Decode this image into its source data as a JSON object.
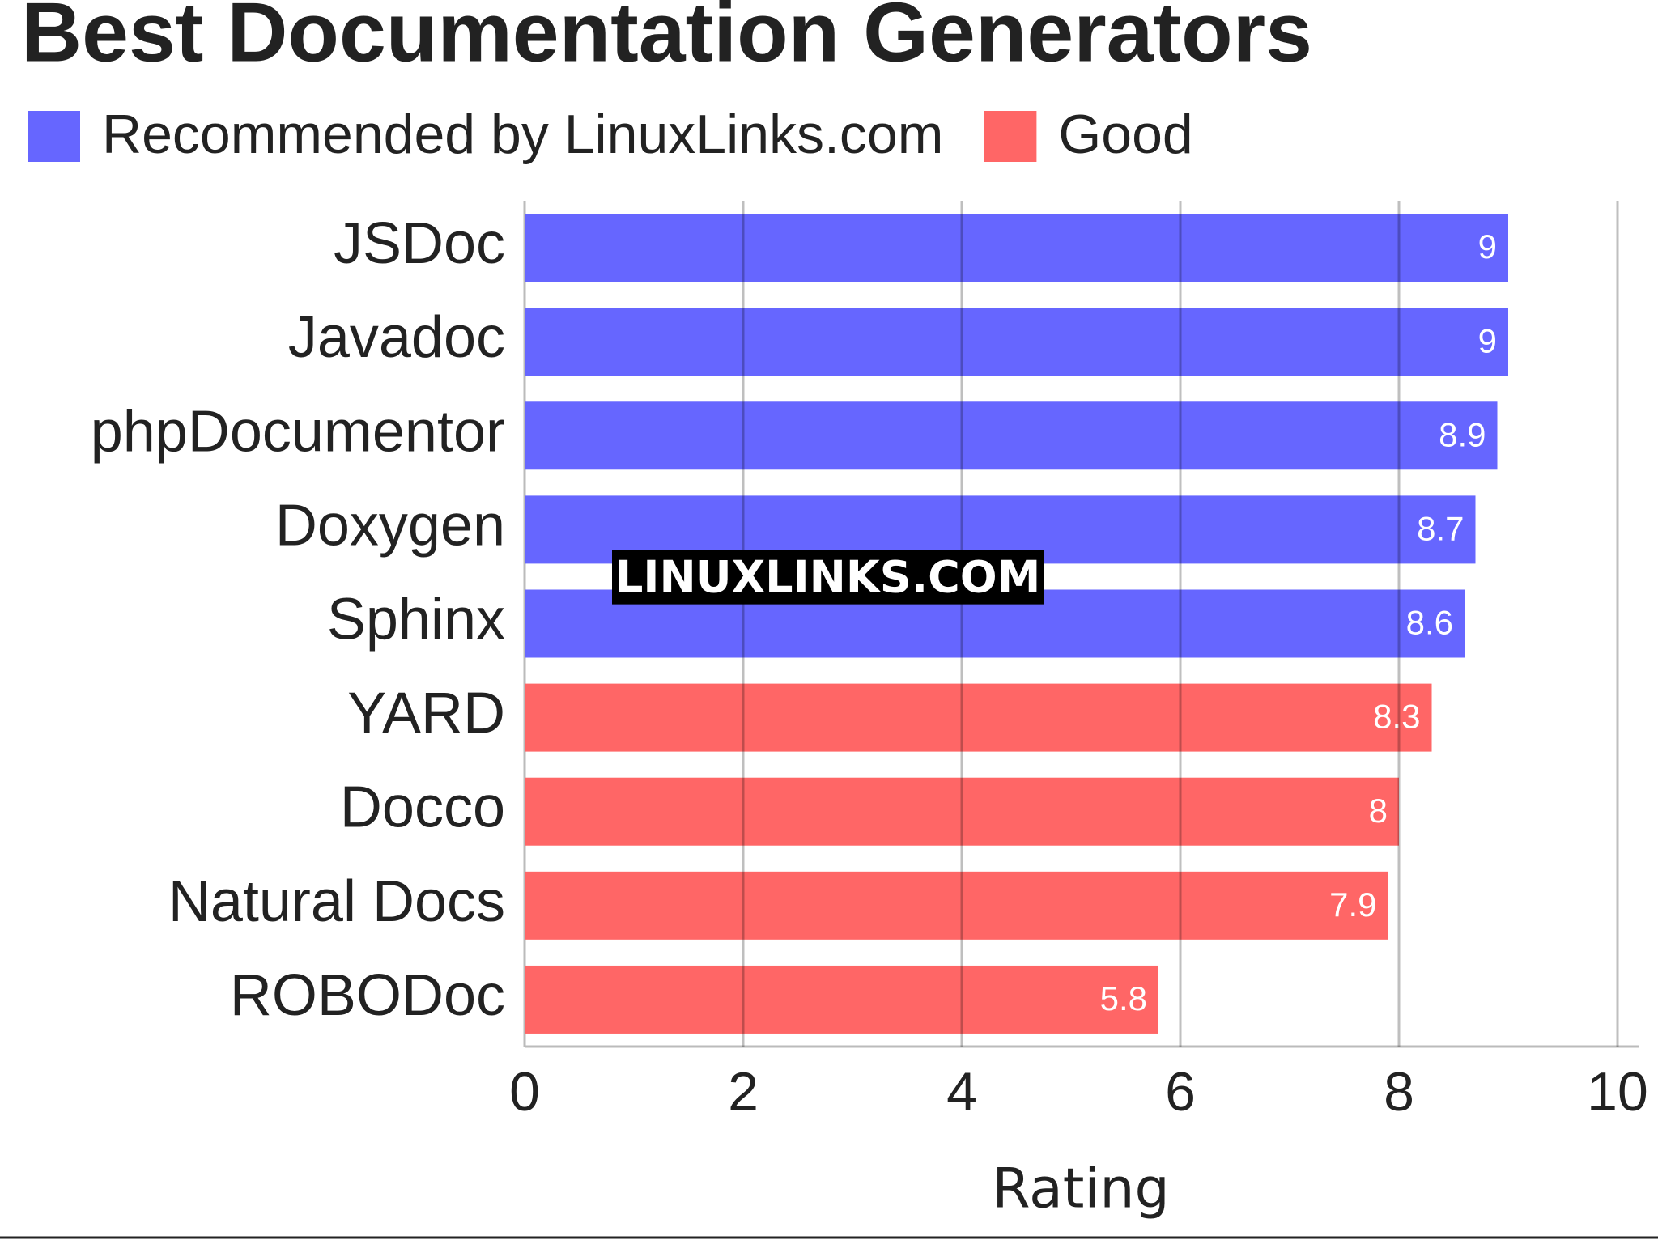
{
  "chart_data": {
    "type": "bar",
    "orientation": "horizontal",
    "title": "Best Documentation Generators",
    "watermark": "LINUXLINKS.COM",
    "x_label": "Rating",
    "categories": [
      "JSDoc",
      "Javadoc",
      "phpDocumentor",
      "Doxygen",
      "Sphinx",
      "YARD",
      "Docco",
      "Natural Docs",
      "ROBODoc"
    ],
    "series": [
      {
        "name": "Recommended by LinuxLinks.com",
        "color": "#6666ff",
        "values": [
          9,
          9,
          8.9,
          8.7,
          8.6,
          null,
          null,
          null,
          null
        ]
      },
      {
        "name": "Good",
        "color": "#ff6666",
        "values": [
          null,
          null,
          null,
          null,
          null,
          8.3,
          8,
          7.9,
          5.8
        ]
      }
    ],
    "xlim": [
      0,
      10
    ],
    "xticks": [
      0,
      2,
      4,
      6,
      8,
      10
    ],
    "grid": true,
    "legend": "top-left"
  }
}
